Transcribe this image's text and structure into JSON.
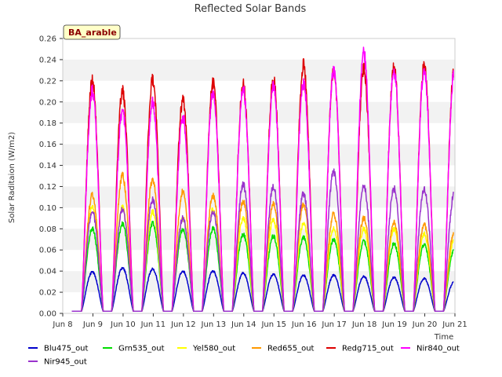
{
  "chart_data": {
    "type": "line",
    "title": "Reflected Solar Bands",
    "ylabel": "Solar Raditaion (W/m2)",
    "xlabel": "Time",
    "badge": "BA_arable",
    "xlim": [
      8.0,
      21.0
    ],
    "ylim": [
      0.0,
      0.26
    ],
    "x_ticks": [
      8,
      9,
      10,
      11,
      12,
      13,
      14,
      15,
      16,
      17,
      18,
      19,
      20,
      21
    ],
    "x_tick_labels": [
      "Jun 8",
      "Jun 9",
      "Jun 10",
      "Jun 11",
      "Jun 12",
      "Jun 13",
      "Jun 14",
      "Jun 15",
      "Jun 16",
      "Jun 17",
      "Jun 18",
      "Jun 19",
      "Jun 20",
      "Jun 21"
    ],
    "y_ticks": [
      0.0,
      0.02,
      0.04,
      0.06,
      0.08,
      0.1,
      0.12,
      0.14,
      0.16,
      0.18,
      0.2,
      0.22,
      0.24,
      0.26
    ],
    "y_tick_labels": [
      "0.00",
      "0.02",
      "0.04",
      "0.06",
      "0.08",
      "0.10",
      "0.12",
      "0.14",
      "0.16",
      "0.18",
      "0.20",
      "0.22",
      "0.24",
      "0.26"
    ],
    "grid": "horizontal-bands",
    "legend_position": "bottom",
    "day_start": 8.3,
    "day_end": 20.95,
    "night_value": 0.002,
    "days": [
      9,
      10,
      11,
      12,
      13,
      14,
      15,
      16,
      17,
      18,
      19,
      20,
      21
    ],
    "series": [
      {
        "name": "Blu475_out",
        "color": "#0000cc",
        "peaks": [
          0.039,
          0.043,
          0.042,
          0.04,
          0.04,
          0.038,
          0.037,
          0.036,
          0.036,
          0.035,
          0.034,
          0.033,
          0.03
        ]
      },
      {
        "name": "Grn535_out",
        "color": "#00dd00",
        "peaks": [
          0.08,
          0.085,
          0.085,
          0.08,
          0.08,
          0.075,
          0.073,
          0.072,
          0.07,
          0.068,
          0.066,
          0.065,
          0.06
        ]
      },
      {
        "name": "Yel580_out",
        "color": "#ffff00",
        "peaks": [
          0.1,
          0.1,
          0.096,
          0.09,
          0.098,
          0.09,
          0.088,
          0.085,
          0.08,
          0.08,
          0.08,
          0.075,
          0.07
        ]
      },
      {
        "name": "Red655_out",
        "color": "#ff9900",
        "peaks": [
          0.112,
          0.13,
          0.127,
          0.115,
          0.112,
          0.106,
          0.103,
          0.103,
          0.094,
          0.09,
          0.086,
          0.084,
          0.077
        ]
      },
      {
        "name": "Redg715_out",
        "color": "#dd0000",
        "peaks": [
          0.22,
          0.21,
          0.222,
          0.202,
          0.218,
          0.216,
          0.222,
          0.234,
          0.228,
          0.23,
          0.232,
          0.234,
          0.232
        ]
      },
      {
        "name": "Nir840_out",
        "color": "#ff00ff",
        "peaks": [
          0.21,
          0.192,
          0.2,
          0.186,
          0.21,
          0.212,
          0.214,
          0.218,
          0.228,
          0.246,
          0.23,
          0.23,
          0.228
        ]
      },
      {
        "name": "Nir945_out",
        "color": "#9933cc",
        "peaks": [
          0.096,
          0.098,
          0.108,
          0.09,
          0.096,
          0.122,
          0.12,
          0.113,
          0.134,
          0.12,
          0.118,
          0.118,
          0.114
        ]
      }
    ]
  }
}
